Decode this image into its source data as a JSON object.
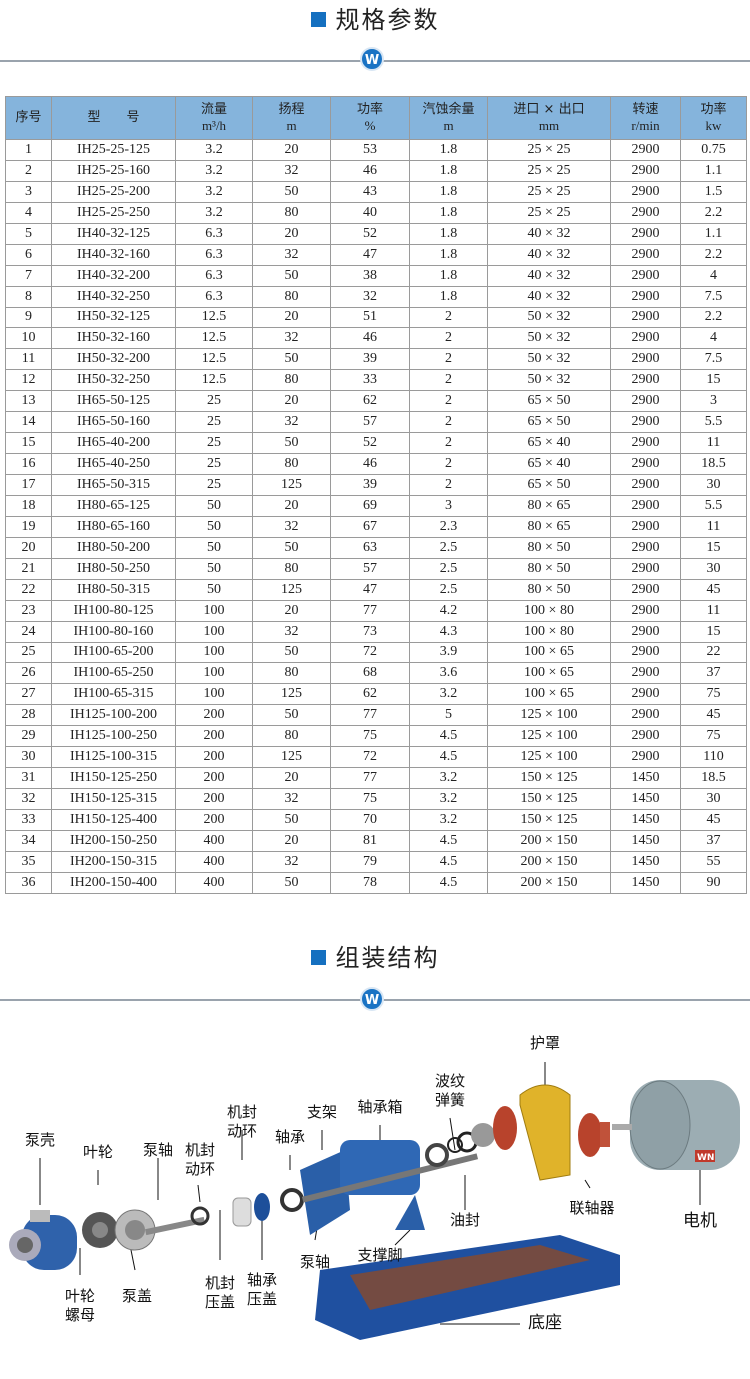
{
  "spec_section": {
    "title": "规格参数",
    "badge": "W"
  },
  "table": {
    "headers": [
      {
        "label": "序号",
        "unit": ""
      },
      {
        "label": "型　　号",
        "unit": ""
      },
      {
        "label": "流量",
        "unit": "m³/h"
      },
      {
        "label": "扬程",
        "unit": "m"
      },
      {
        "label": "功率",
        "unit": "%"
      },
      {
        "label": "汽蚀余量",
        "unit": "m"
      },
      {
        "label": "进口 × 出口",
        "unit": "mm"
      },
      {
        "label": "转速",
        "unit": "r/min"
      },
      {
        "label": "功率",
        "unit": "kw"
      }
    ],
    "rows": [
      [
        "1",
        "IH25-25-125",
        "3.2",
        "20",
        "53",
        "1.8",
        "25 × 25",
        "2900",
        "0.75"
      ],
      [
        "2",
        "IH25-25-160",
        "3.2",
        "32",
        "46",
        "1.8",
        "25 × 25",
        "2900",
        "1.1"
      ],
      [
        "3",
        "IH25-25-200",
        "3.2",
        "50",
        "43",
        "1.8",
        "25 × 25",
        "2900",
        "1.5"
      ],
      [
        "4",
        "IH25-25-250",
        "3.2",
        "80",
        "40",
        "1.8",
        "25 × 25",
        "2900",
        "2.2"
      ],
      [
        "5",
        "IH40-32-125",
        "6.3",
        "20",
        "52",
        "1.8",
        "40 × 32",
        "2900",
        "1.1"
      ],
      [
        "6",
        "IH40-32-160",
        "6.3",
        "32",
        "47",
        "1.8",
        "40 × 32",
        "2900",
        "2.2"
      ],
      [
        "7",
        "IH40-32-200",
        "6.3",
        "50",
        "38",
        "1.8",
        "40 × 32",
        "2900",
        "4"
      ],
      [
        "8",
        "IH40-32-250",
        "6.3",
        "80",
        "32",
        "1.8",
        "40 × 32",
        "2900",
        "7.5"
      ],
      [
        "9",
        "IH50-32-125",
        "12.5",
        "20",
        "51",
        "2",
        "50 × 32",
        "2900",
        "2.2"
      ],
      [
        "10",
        "IH50-32-160",
        "12.5",
        "32",
        "46",
        "2",
        "50 × 32",
        "2900",
        "4"
      ],
      [
        "11",
        "IH50-32-200",
        "12.5",
        "50",
        "39",
        "2",
        "50 × 32",
        "2900",
        "7.5"
      ],
      [
        "12",
        "IH50-32-250",
        "12.5",
        "80",
        "33",
        "2",
        "50 × 32",
        "2900",
        "15"
      ],
      [
        "13",
        "IH65-50-125",
        "25",
        "20",
        "62",
        "2",
        "65 × 50",
        "2900",
        "3"
      ],
      [
        "14",
        "IH65-50-160",
        "25",
        "32",
        "57",
        "2",
        "65 × 50",
        "2900",
        "5.5"
      ],
      [
        "15",
        "IH65-40-200",
        "25",
        "50",
        "52",
        "2",
        "65 × 40",
        "2900",
        "11"
      ],
      [
        "16",
        "IH65-40-250",
        "25",
        "80",
        "46",
        "2",
        "65 × 40",
        "2900",
        "18.5"
      ],
      [
        "17",
        "IH65-50-315",
        "25",
        "125",
        "39",
        "2",
        "65 × 50",
        "2900",
        "30"
      ],
      [
        "18",
        "IH80-65-125",
        "50",
        "20",
        "69",
        "3",
        "80 × 65",
        "2900",
        "5.5"
      ],
      [
        "19",
        "IH80-65-160",
        "50",
        "32",
        "67",
        "2.3",
        "80 × 65",
        "2900",
        "11"
      ],
      [
        "20",
        "IH80-50-200",
        "50",
        "50",
        "63",
        "2.5",
        "80 × 50",
        "2900",
        "15"
      ],
      [
        "21",
        "IH80-50-250",
        "50",
        "80",
        "57",
        "2.5",
        "80 × 50",
        "2900",
        "30"
      ],
      [
        "22",
        "IH80-50-315",
        "50",
        "125",
        "47",
        "2.5",
        "80 × 50",
        "2900",
        "45"
      ],
      [
        "23",
        "IH100-80-125",
        "100",
        "20",
        "77",
        "4.2",
        "100 × 80",
        "2900",
        "11"
      ],
      [
        "24",
        "IH100-80-160",
        "100",
        "32",
        "73",
        "4.3",
        "100 × 80",
        "2900",
        "15"
      ],
      [
        "25",
        "IH100-65-200",
        "100",
        "50",
        "72",
        "3.9",
        "100 × 65",
        "2900",
        "22"
      ],
      [
        "26",
        "IH100-65-250",
        "100",
        "80",
        "68",
        "3.6",
        "100 × 65",
        "2900",
        "37"
      ],
      [
        "27",
        "IH100-65-315",
        "100",
        "125",
        "62",
        "3.2",
        "100 × 65",
        "2900",
        "75"
      ],
      [
        "28",
        "IH125-100-200",
        "200",
        "50",
        "77",
        "5",
        "125 × 100",
        "2900",
        "45"
      ],
      [
        "29",
        "IH125-100-250",
        "200",
        "80",
        "75",
        "4.5",
        "125 × 100",
        "2900",
        "75"
      ],
      [
        "30",
        "IH125-100-315",
        "200",
        "125",
        "72",
        "4.5",
        "125 × 100",
        "2900",
        "110"
      ],
      [
        "31",
        "IH150-125-250",
        "200",
        "20",
        "77",
        "3.2",
        "150 × 125",
        "1450",
        "18.5"
      ],
      [
        "32",
        "IH150-125-315",
        "200",
        "32",
        "75",
        "3.2",
        "150 × 125",
        "1450",
        "30"
      ],
      [
        "33",
        "IH150-125-400",
        "200",
        "50",
        "70",
        "3.2",
        "150 × 125",
        "1450",
        "45"
      ],
      [
        "34",
        "IH200-150-250",
        "400",
        "20",
        "81",
        "4.5",
        "200 × 150",
        "1450",
        "37"
      ],
      [
        "35",
        "IH200-150-315",
        "400",
        "32",
        "79",
        "4.5",
        "200 × 150",
        "1450",
        "55"
      ],
      [
        "36",
        "IH200-150-400",
        "400",
        "50",
        "78",
        "4.5",
        "200 × 150",
        "1450",
        "90"
      ]
    ]
  },
  "assembly_section": {
    "title": "组装结构",
    "badge": "W",
    "labels": {
      "pump_casing": "泵壳",
      "impeller": "叶轮",
      "shaft_top": "泵轴",
      "seal_ring_a": "机封\n动环",
      "seal_ring_b": "机封\n动环",
      "bearing": "轴承",
      "bracket": "支架",
      "bearing_box": "轴承箱",
      "wave_spring": "波纹\n弹簧",
      "guard": "护罩",
      "coupling": "联轴器",
      "motor": "电机",
      "oil_seal": "油封",
      "support_foot": "支撑脚",
      "shaft_bottom": "泵轴",
      "seal_gland": "机封\n压盖",
      "bearing_cover": "轴承\n压盖",
      "pump_cover": "泵盖",
      "impeller_nut": "叶轮\n螺母",
      "base": "底座",
      "motor_brand": "WN"
    }
  },
  "colors": {
    "accent": "#1570c0",
    "header_bg": "#85b4dc",
    "pump_blue": "#2a5fa8",
    "guard_yellow": "#e0b32a",
    "coupling_red": "#b8432c"
  }
}
